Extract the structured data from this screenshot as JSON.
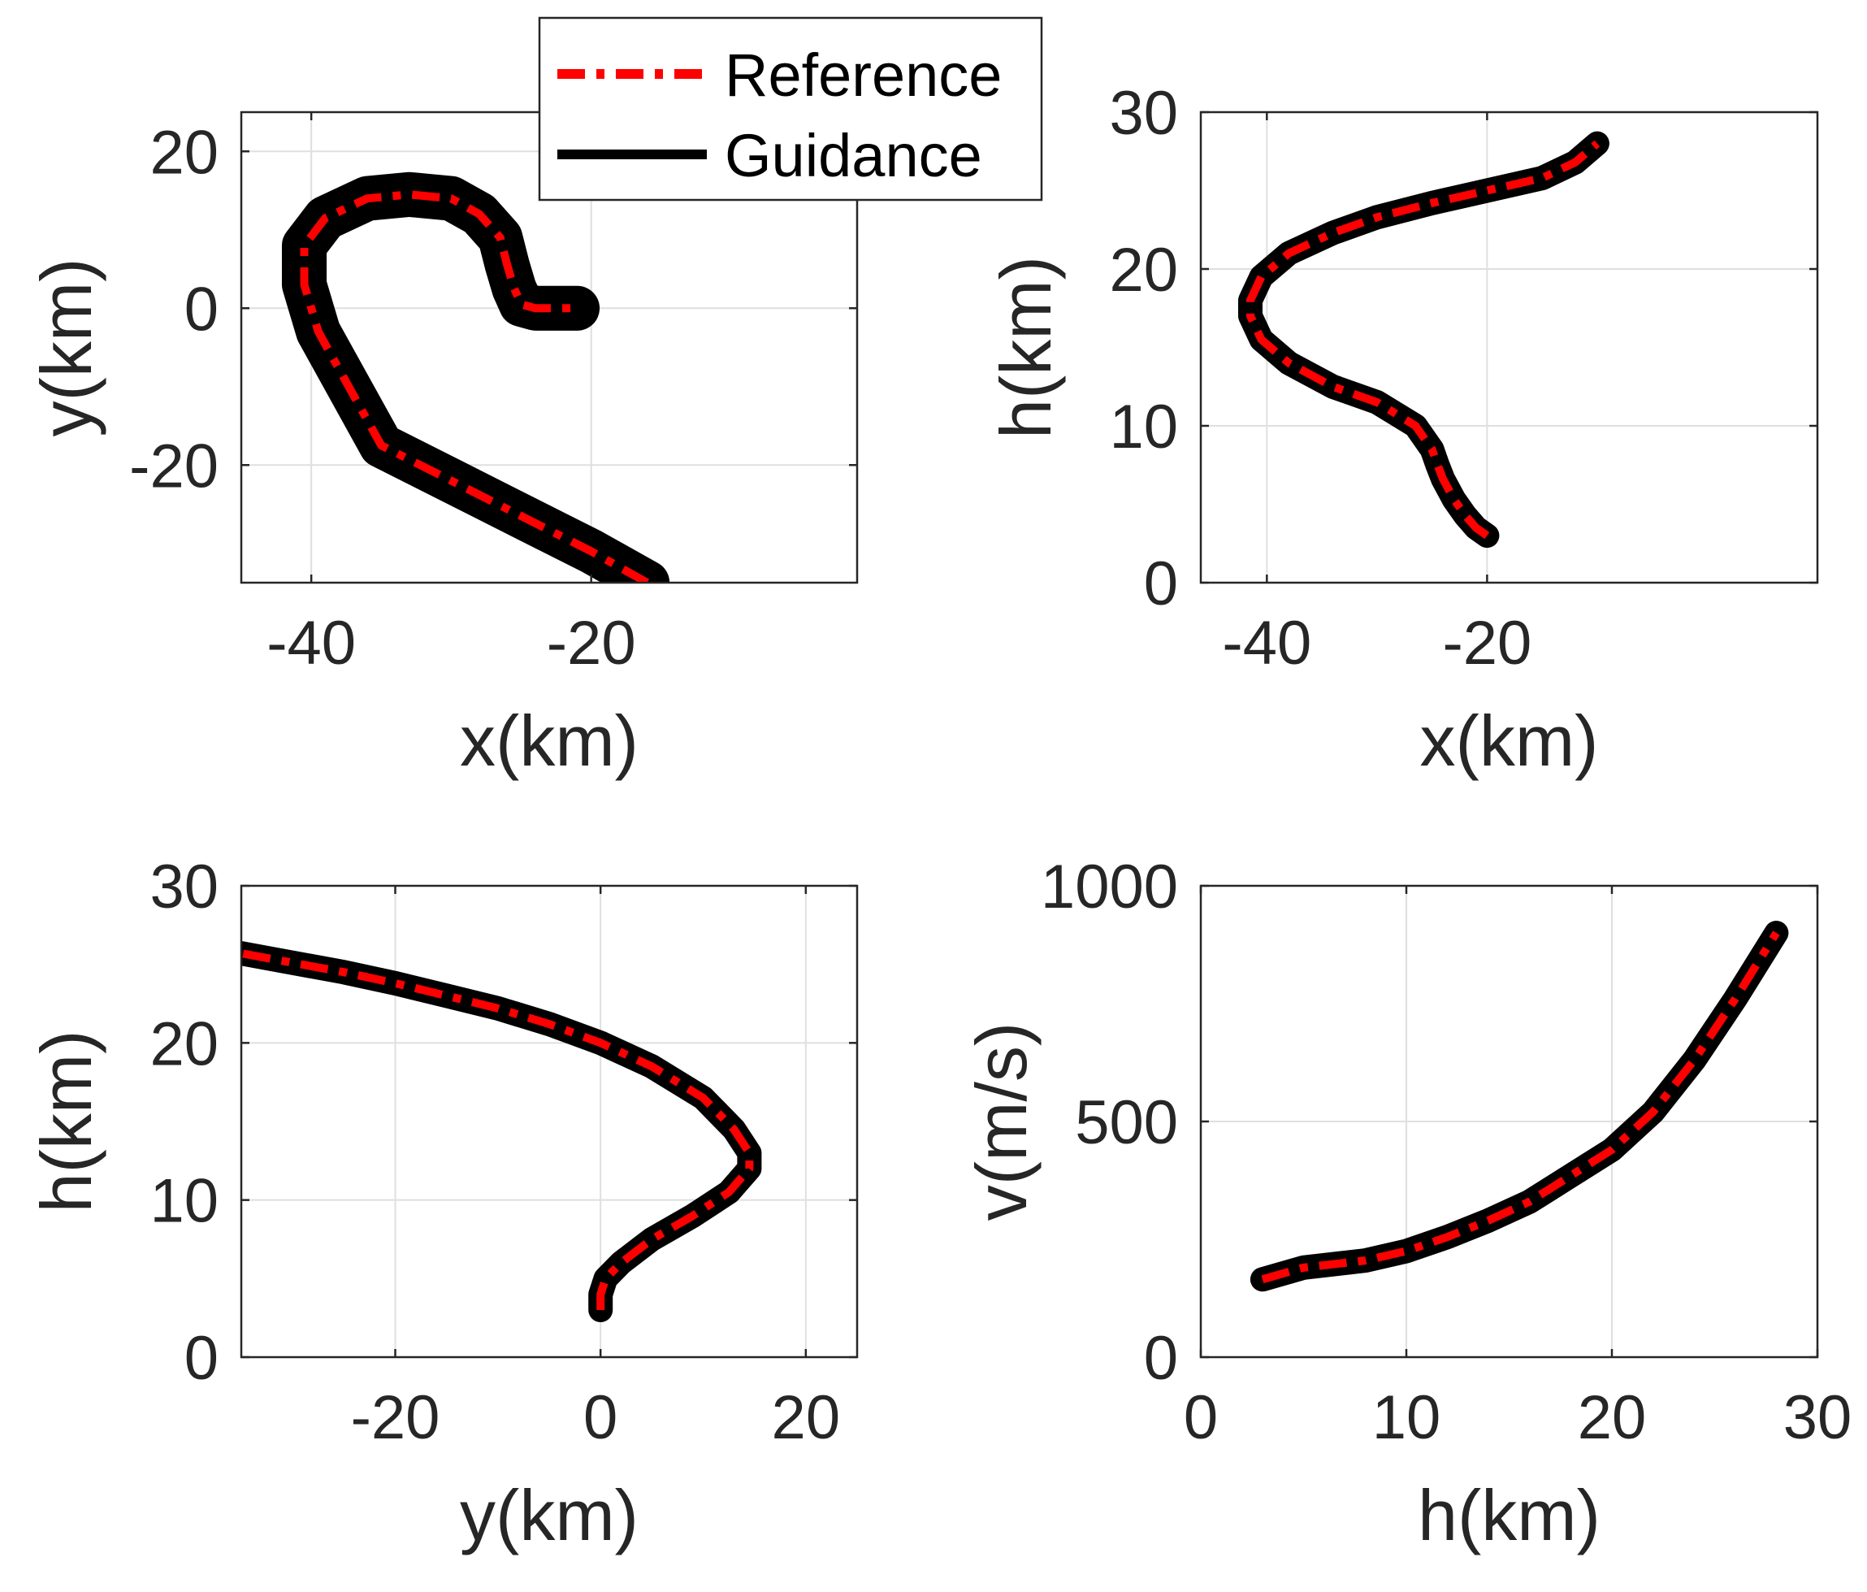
{
  "legend": {
    "placement": "top-center",
    "entries": [
      {
        "label": "Reference",
        "color": "#ff0000",
        "style": "dash-dot"
      },
      {
        "label": "Guidance",
        "color": "#000000",
        "style": "solid"
      }
    ]
  },
  "chart_data": [
    {
      "type": "line",
      "xlabel": "x(km)",
      "ylabel": "y(km)",
      "xlim": [
        -45,
        -1
      ],
      "ylim": [
        -35,
        25
      ],
      "xticks": [
        -40,
        -20
      ],
      "yticks": [
        -20,
        0,
        20
      ],
      "grid": true,
      "series": [
        {
          "name": "Guidance",
          "color": "#000000",
          "band_width": 3.2,
          "x": [
            -16,
            -20,
            -25,
            -30,
            -35,
            -39.5,
            -40.5,
            -40.5,
            -39,
            -36,
            -33,
            -30,
            -28,
            -26.5,
            -26,
            -25.5,
            -25,
            -24,
            -22,
            -21
          ],
          "y": [
            -35,
            -31,
            -26.5,
            -22,
            -17.5,
            -3,
            3,
            8,
            11.5,
            14,
            14.5,
            14,
            12,
            9,
            5.5,
            2.5,
            0.5,
            0,
            0,
            0
          ]
        },
        {
          "name": "Reference",
          "color": "#ff0000",
          "dash": "dash-dot",
          "x": [
            -16,
            -20,
            -25,
            -30,
            -35,
            -39.5,
            -40.5,
            -40.5,
            -39,
            -36,
            -33,
            -30,
            -28,
            -26.5,
            -26,
            -25.5,
            -25,
            -24,
            -22,
            -21
          ],
          "y": [
            -35,
            -31,
            -26.5,
            -22,
            -17.5,
            -3,
            3,
            8,
            11.5,
            14,
            14.5,
            14,
            12,
            9,
            5.5,
            2.5,
            0.5,
            0,
            0,
            0
          ]
        }
      ]
    },
    {
      "type": "line",
      "xlabel": "x(km)",
      "ylabel": "h(km)",
      "xlim": [
        -46,
        10
      ],
      "ylim": [
        0,
        30
      ],
      "xticks": [
        -40,
        -20
      ],
      "yticks": [
        0,
        10,
        20,
        30
      ],
      "grid": true,
      "series": [
        {
          "name": "Guidance",
          "color": "#000000",
          "band_width": 1.1,
          "x": [
            -20,
            -21,
            -22,
            -23,
            -24,
            -24.5,
            -25,
            -26.5,
            -30,
            -34,
            -38,
            -40.5,
            -41.5,
            -41.5,
            -40.5,
            -38,
            -34,
            -30,
            -25,
            -20,
            -15,
            -12,
            -10
          ],
          "y": [
            3,
            3.5,
            4.3,
            5.3,
            6.6,
            7.5,
            8.5,
            10,
            11.5,
            12.5,
            14,
            15.5,
            17,
            18,
            19.5,
            21,
            22.3,
            23.3,
            24.2,
            25,
            25.8,
            26.8,
            28
          ]
        },
        {
          "name": "Reference",
          "color": "#ff0000",
          "dash": "dash-dot",
          "x": [
            -20,
            -21,
            -22,
            -23,
            -24,
            -24.5,
            -25,
            -26.5,
            -30,
            -34,
            -38,
            -40.5,
            -41.5,
            -41.5,
            -40.5,
            -38,
            -34,
            -30,
            -25,
            -20,
            -15,
            -12,
            -10
          ],
          "y": [
            3,
            3.5,
            4.3,
            5.3,
            6.6,
            7.5,
            8.5,
            10,
            11.5,
            12.5,
            14,
            15.5,
            17,
            18,
            19.5,
            21,
            22.3,
            23.3,
            24.2,
            25,
            25.8,
            26.8,
            28
          ]
        }
      ]
    },
    {
      "type": "line",
      "xlabel": "y(km)",
      "ylabel": "h(km)",
      "xlim": [
        -35,
        25
      ],
      "ylim": [
        0,
        30
      ],
      "xticks": [
        -20,
        0,
        20
      ],
      "yticks": [
        0,
        10,
        20,
        30
      ],
      "grid": true,
      "series": [
        {
          "name": "Guidance",
          "color": "#000000",
          "band_width": 1.1,
          "x": [
            0,
            0,
            0.5,
            2,
            5,
            9,
            12.5,
            14.5,
            14.5,
            13,
            10,
            5,
            0,
            -5,
            -10,
            -15,
            -20,
            -25,
            -30,
            -35
          ],
          "y": [
            3,
            4,
            5,
            6,
            7.5,
            9,
            10.5,
            12,
            13,
            14.5,
            16.5,
            18.5,
            20,
            21.2,
            22.2,
            23,
            23.8,
            24.5,
            25.1,
            25.7
          ]
        },
        {
          "name": "Reference",
          "color": "#ff0000",
          "dash": "dash-dot",
          "x": [
            0,
            0,
            0.5,
            2,
            5,
            9,
            12.5,
            14.5,
            14.5,
            13,
            10,
            5,
            0,
            -5,
            -10,
            -15,
            -20,
            -25,
            -30,
            -35
          ],
          "y": [
            3,
            4,
            5,
            6,
            7.5,
            9,
            10.5,
            12,
            13,
            14.5,
            16.5,
            18.5,
            20,
            21.2,
            22.2,
            23,
            23.8,
            24.5,
            25.1,
            25.7
          ]
        }
      ]
    },
    {
      "type": "line",
      "xlabel": "h(km)",
      "ylabel": "v(m/s)",
      "xlim": [
        0,
        30
      ],
      "ylim": [
        0,
        1000
      ],
      "xticks": [
        0,
        10,
        20,
        30
      ],
      "yticks": [
        0,
        500,
        1000
      ],
      "grid": true,
      "series": [
        {
          "name": "Guidance",
          "color": "#000000",
          "band_width": 0.7,
          "x": [
            3,
            5,
            8,
            10,
            12,
            14,
            16,
            18,
            20,
            22,
            24,
            26,
            28
          ],
          "y": [
            165,
            190,
            205,
            225,
            255,
            290,
            330,
            385,
            440,
            520,
            630,
            760,
            900
          ]
        },
        {
          "name": "Reference",
          "color": "#ff0000",
          "dash": "dash-dot",
          "x": [
            3,
            5,
            8,
            10,
            12,
            14,
            16,
            18,
            20,
            22,
            24,
            26,
            28
          ],
          "y": [
            165,
            190,
            205,
            225,
            255,
            290,
            330,
            385,
            440,
            520,
            630,
            760,
            900
          ]
        }
      ]
    }
  ]
}
